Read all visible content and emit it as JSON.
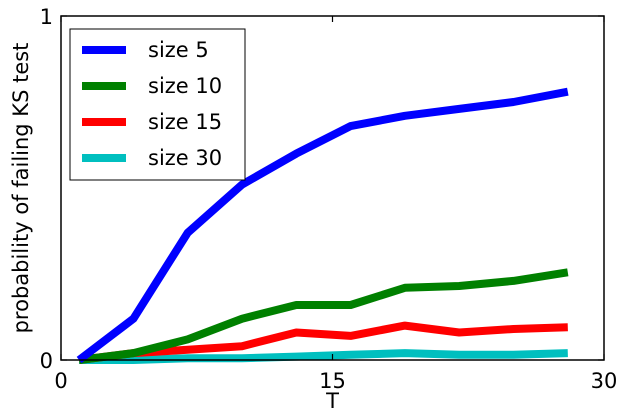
{
  "chart_data": {
    "type": "line",
    "title": "",
    "xlabel": "T",
    "ylabel": "probability of failing KS test",
    "xlim": [
      0,
      30
    ],
    "ylim": [
      0,
      1
    ],
    "xticks": [
      {
        "value": 0,
        "label": "0"
      },
      {
        "value": 15,
        "label": "15"
      },
      {
        "value": 30,
        "label": "30"
      }
    ],
    "yticks": [
      {
        "value": 0,
        "label": "0"
      },
      {
        "value": 1,
        "label": "1"
      }
    ],
    "grid": false,
    "legend_position": "top-left",
    "x": [
      1,
      4,
      7,
      10,
      13,
      16,
      19,
      22,
      25,
      28
    ],
    "series": [
      {
        "name": "size 5",
        "color": "#0000ff",
        "values": [
          0.0,
          0.12,
          0.37,
          0.51,
          0.6,
          0.68,
          0.71,
          0.73,
          0.75,
          0.78
        ]
      },
      {
        "name": "size 10",
        "color": "#008000",
        "values": [
          0.0,
          0.02,
          0.06,
          0.12,
          0.16,
          0.16,
          0.21,
          0.215,
          0.23,
          0.255
        ]
      },
      {
        "name": "size 15",
        "color": "#ff0000",
        "values": [
          0.0,
          0.02,
          0.03,
          0.04,
          0.08,
          0.07,
          0.1,
          0.08,
          0.09,
          0.095
        ]
      },
      {
        "name": "size 30",
        "color": "#00bfbf",
        "values": [
          0.0,
          0.0,
          0.005,
          0.005,
          0.01,
          0.015,
          0.02,
          0.015,
          0.015,
          0.02
        ]
      }
    ]
  }
}
